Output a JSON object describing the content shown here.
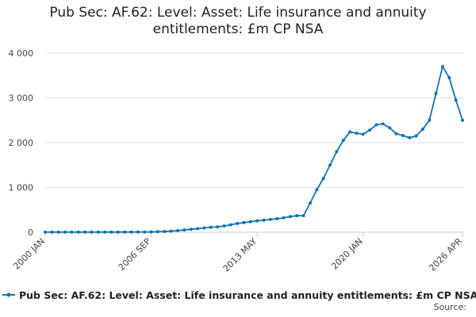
{
  "chart_data": {
    "type": "line",
    "title": "Pub Sec: AF.62: Level: Asset: Life insurance and annuity entitlements: £m CP NSA",
    "categories": [
      "2000 JAN",
      null,
      null,
      null,
      null,
      null,
      null,
      null,
      null,
      null,
      null,
      null,
      null,
      null,
      null,
      null,
      "2006 SEP",
      null,
      null,
      null,
      null,
      null,
      null,
      null,
      null,
      null,
      null,
      null,
      null,
      null,
      null,
      null,
      "2013 MAY",
      null,
      null,
      null,
      null,
      null,
      null,
      null,
      null,
      null,
      null,
      null,
      null,
      null,
      null,
      null,
      "2020 JAN",
      null,
      null,
      null,
      null,
      null,
      null,
      null,
      null,
      null,
      null,
      null,
      null,
      null,
      null,
      "2026 APR"
    ],
    "series": [
      {
        "name": "Pub Sec: AF.62: Level: Asset: Life insurance and annuity entitlements: £m CP NSA",
        "color": "#0e74b8",
        "values": [
          2,
          2,
          2,
          2,
          2,
          2,
          2,
          2,
          2,
          3,
          3,
          3,
          3,
          4,
          4,
          5,
          6,
          10,
          15,
          25,
          35,
          50,
          65,
          80,
          95,
          110,
          120,
          140,
          165,
          195,
          215,
          235,
          255,
          270,
          285,
          300,
          320,
          350,
          370,
          370,
          650,
          950,
          1200,
          1500,
          1800,
          2050,
          2240,
          2210,
          2190,
          2280,
          2400,
          2420,
          2330,
          2200,
          2160,
          2110,
          2150,
          2300,
          2500,
          3100,
          3700,
          3450,
          2950,
          2500
        ]
      }
    ],
    "ylim": [
      0,
      4000
    ],
    "yticks": [
      0,
      {
        "value": 1000,
        "label": "1 000"
      },
      {
        "value": 2000,
        "label": "2 000"
      },
      {
        "value": 3000,
        "label": "3 000"
      },
      {
        "value": 4000,
        "label": "4 000"
      }
    ],
    "grid": true,
    "source": "Source:"
  }
}
